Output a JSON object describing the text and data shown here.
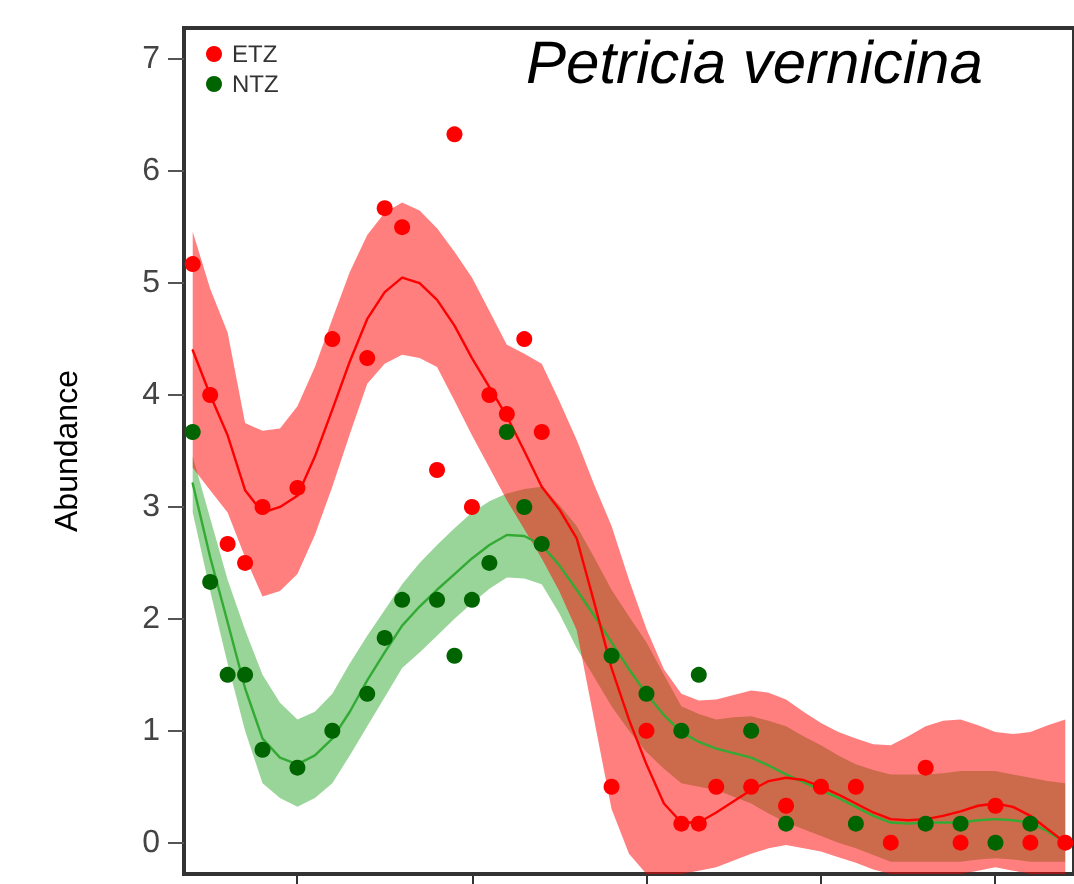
{
  "chart_data": {
    "type": "scatter",
    "title": "Petricia vernicina",
    "ylabel": "Abundance",
    "legend": "top left",
    "grid": false,
    "marker": "circle",
    "tick_labels": "y",
    "categories": [
      null,
      null,
      null,
      null,
      null,
      null,
      null,
      null,
      null,
      null,
      null,
      null,
      null,
      null,
      null,
      null,
      null,
      null,
      null,
      null,
      null,
      null,
      null,
      null,
      null,
      null,
      null,
      null,
      null,
      null,
      null,
      null,
      null,
      null,
      null,
      null,
      null,
      null,
      null,
      null,
      null,
      null,
      null,
      null,
      null,
      null,
      null,
      null,
      null,
      null,
      null
    ],
    "ylim": [
      -0.28,
      7.28
    ],
    "yticks": [
      0,
      1,
      2,
      3,
      4,
      5,
      6,
      7
    ],
    "series": [
      {
        "name": "ETZ",
        "color": "#ff0000",
        "values": [
          5.17,
          4.0,
          2.67,
          2.5,
          3.0,
          null,
          3.17,
          null,
          4.5,
          null,
          4.33,
          5.67,
          5.5,
          null,
          3.33,
          6.33,
          3.0,
          4.0,
          3.83,
          4.5,
          3.67,
          null,
          null,
          null,
          0.5,
          null,
          1.0,
          null,
          0.17,
          0.17,
          0.5,
          null,
          0.5,
          null,
          0.33,
          null,
          0.5,
          null,
          0.5,
          null,
          0,
          null,
          0.67,
          null,
          0,
          null,
          0.33,
          null,
          0,
          null,
          0
        ]
      },
      {
        "type": "line",
        "marker": "none",
        "color": "#33aa33",
        "values": [
          3.21,
          2.55,
          1.97,
          1.38,
          0.93,
          0.76,
          0.7,
          0.78,
          0.93,
          1.17,
          1.45,
          1.7,
          1.94,
          2.11,
          2.26,
          2.4,
          2.54,
          2.66,
          2.75,
          2.74,
          2.66,
          2.48,
          2.26,
          2.03,
          1.79,
          1.55,
          1.33,
          1.14,
          0.99,
          0.9,
          0.84,
          0.8,
          0.76,
          0.69,
          0.61,
          0.54,
          0.47,
          0.4,
          0.32,
          0.24,
          0.18,
          0.17,
          0.18,
          0.18,
          0.18,
          0.2,
          0.21,
          0.2,
          0.18,
          0.1,
          0
        ],
        "lower": [
          2.95,
          2.25,
          1.6,
          1.0,
          0.53,
          0.4,
          0.32,
          0.4,
          0.53,
          0.78,
          1.04,
          1.3,
          1.56,
          1.7,
          1.85,
          2.0,
          2.14,
          2.27,
          2.37,
          2.36,
          2.31,
          2.05,
          1.74,
          1.48,
          1.22,
          1.0,
          0.81,
          0.66,
          0.53,
          0.5,
          0.47,
          0.41,
          0.35,
          0.26,
          0.18,
          0.12,
          0.06,
          0.0,
          -0.05,
          -0.11,
          -0.17,
          -0.17,
          -0.17,
          -0.17,
          -0.17,
          -0.15,
          -0.14,
          -0.15,
          -0.17,
          -0.17,
          -0.17
        ],
        "upper": [
          3.45,
          2.9,
          2.35,
          1.9,
          1.5,
          1.25,
          1.1,
          1.17,
          1.33,
          1.6,
          1.85,
          2.08,
          2.31,
          2.5,
          2.66,
          2.81,
          2.95,
          3.05,
          3.12,
          3.16,
          3.18,
          3.02,
          2.83,
          2.55,
          2.26,
          2.02,
          1.79,
          1.5,
          1.22,
          1.15,
          1.1,
          1.12,
          1.13,
          1.09,
          1.04,
          0.95,
          0.87,
          0.78,
          0.7,
          0.65,
          0.61,
          0.61,
          0.61,
          0.62,
          0.64,
          0.64,
          0.64,
          0.61,
          0.58,
          0.55,
          0.53
        ]
      },
      {
        "name": "NTZ",
        "color": "#006400",
        "values": [
          3.67,
          2.33,
          1.5,
          1.5,
          0.83,
          null,
          0.67,
          null,
          1.0,
          null,
          1.33,
          1.83,
          2.17,
          null,
          2.17,
          1.67,
          2.17,
          2.5,
          3.67,
          3.0,
          2.67,
          null,
          null,
          null,
          1.67,
          null,
          1.33,
          null,
          1.0,
          1.5,
          null,
          null,
          1.0,
          null,
          0.17,
          null,
          null,
          null,
          0.17,
          null,
          null,
          null,
          0.17,
          null,
          0.17,
          null,
          0,
          null,
          0.17,
          null,
          null
        ]
      },
      {
        "type": "line",
        "marker": "none",
        "color": "#ff0000",
        "values": [
          4.4,
          4.0,
          3.64,
          3.15,
          2.95,
          3.0,
          3.1,
          3.45,
          3.87,
          4.3,
          4.68,
          4.92,
          5.05,
          5.0,
          4.85,
          4.62,
          4.33,
          4.07,
          3.81,
          3.5,
          3.18,
          2.98,
          2.72,
          2.15,
          1.56,
          1.1,
          0.7,
          0.35,
          0.18,
          0.18,
          0.27,
          0.37,
          0.47,
          0.55,
          0.58,
          0.56,
          0.5,
          0.43,
          0.35,
          0.27,
          0.21,
          0.2,
          0.21,
          0.24,
          0.28,
          0.33,
          0.35,
          0.32,
          0.24,
          0.12,
          0
        ],
        "lower": [
          3.35,
          3.15,
          2.95,
          2.55,
          2.2,
          2.25,
          2.4,
          2.75,
          3.18,
          3.65,
          4.1,
          4.28,
          4.36,
          4.33,
          4.25,
          3.95,
          3.64,
          3.35,
          3.06,
          2.8,
          2.54,
          2.25,
          1.9,
          1.1,
          0.3,
          -0.1,
          -0.28,
          -0.28,
          -0.28,
          -0.25,
          -0.22,
          -0.16,
          -0.1,
          -0.05,
          -0.02,
          -0.05,
          -0.08,
          -0.13,
          -0.18,
          -0.24,
          -0.28,
          -0.28,
          -0.28,
          -0.28,
          -0.28,
          -0.25,
          -0.22,
          -0.25,
          -0.28,
          -0.28,
          -0.28
        ],
        "upper": [
          5.46,
          4.95,
          4.56,
          3.75,
          3.68,
          3.7,
          3.9,
          4.25,
          4.68,
          5.1,
          5.43,
          5.63,
          5.72,
          5.65,
          5.49,
          5.28,
          5.05,
          4.75,
          4.45,
          4.37,
          4.28,
          3.95,
          3.6,
          3.2,
          2.83,
          2.35,
          1.91,
          1.55,
          1.33,
          1.27,
          1.28,
          1.32,
          1.36,
          1.34,
          1.28,
          1.17,
          1.07,
          0.99,
          0.93,
          0.88,
          0.87,
          0.95,
          1.04,
          1.09,
          1.1,
          1.05,
          0.99,
          0.97,
          0.99,
          1.05,
          1.1
        ]
      }
    ]
  }
}
